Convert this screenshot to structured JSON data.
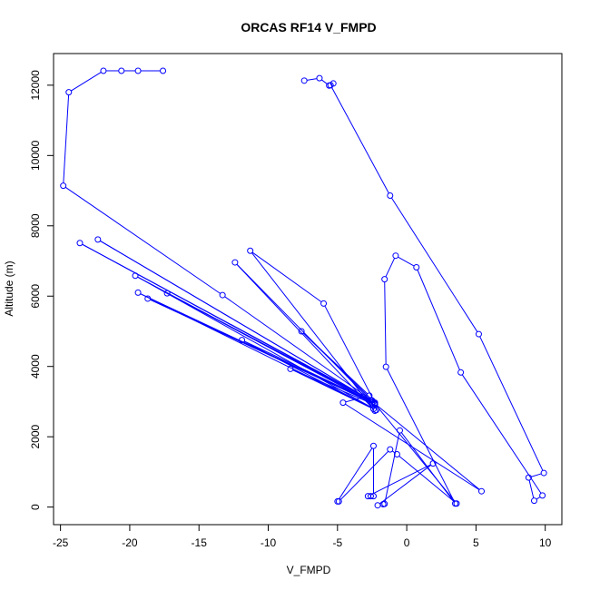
{
  "chart_data": {
    "type": "line",
    "title": "ORCAS RF14 V_FMPD",
    "xlabel": "V_FMPD",
    "ylabel": "Altitude (m)",
    "xlim": [
      -25.5,
      11.2
    ],
    "ylim": [
      -500,
      12900
    ],
    "x_ticks": [
      -25,
      -20,
      -15,
      -10,
      -5,
      0,
      5,
      10
    ],
    "y_ticks": [
      0,
      2000,
      4000,
      6000,
      8000,
      10000,
      12000
    ],
    "grid": false,
    "colors": {
      "series": "#0000ff",
      "axis": "#000000"
    },
    "series": [
      {
        "marker": "open-circle",
        "points": [
          [
            -17.6,
            12410
          ],
          [
            -19.4,
            12410
          ],
          [
            -20.6,
            12410
          ],
          [
            -21.9,
            12410
          ],
          [
            -24.4,
            11800
          ],
          [
            -24.8,
            9140
          ],
          [
            -13.3,
            6030
          ],
          [
            -2.5,
            3030
          ],
          [
            -23.6,
            7510
          ],
          [
            -2.4,
            2990
          ],
          [
            -22.3,
            7610
          ],
          [
            -2.6,
            3040
          ],
          [
            -17.3,
            6080
          ],
          [
            -2.5,
            2980
          ],
          [
            -19.6,
            6580
          ],
          [
            -2.2,
            2760
          ],
          [
            -19.4,
            6100
          ],
          [
            -2.3,
            2930
          ],
          [
            -18.7,
            5930
          ],
          [
            -2.3,
            2960
          ],
          [
            -11.9,
            4750
          ],
          [
            -2.4,
            2790
          ],
          [
            -8.4,
            3930
          ],
          [
            -2.3,
            2910
          ],
          [
            -12.4,
            6960
          ],
          [
            -2.3,
            2740
          ],
          [
            -11.3,
            7290
          ],
          [
            -6.0,
            5790
          ],
          [
            -2.3,
            2970
          ],
          [
            -7.6,
            5000
          ],
          [
            -2.7,
            3170
          ],
          [
            -4.6,
            2970
          ],
          [
            5.4,
            450
          ],
          [
            -2.3,
            2940
          ],
          [
            3.6,
            100
          ],
          [
            -0.7,
            1500
          ],
          [
            -1.2,
            1640
          ],
          [
            -4.9,
            160
          ],
          [
            -5.0,
            160
          ],
          [
            -2.4,
            1740
          ],
          [
            -2.4,
            310
          ],
          [
            -2.6,
            310
          ],
          [
            -2.8,
            310
          ],
          [
            1.9,
            1240
          ],
          [
            -2.1,
            50
          ],
          [
            -1.7,
            80
          ],
          [
            -1.6,
            90
          ],
          [
            -0.5,
            2180
          ],
          [
            3.5,
            100
          ],
          [
            -1.5,
            3990
          ],
          [
            -1.6,
            6480
          ],
          [
            -0.8,
            7150
          ],
          [
            0.7,
            6820
          ],
          [
            3.9,
            3830
          ],
          [
            9.8,
            330
          ],
          [
            9.2,
            180
          ],
          [
            8.8,
            840
          ],
          [
            9.9,
            970
          ],
          [
            5.2,
            4920
          ],
          [
            -1.2,
            8860
          ],
          [
            -5.5,
            12000
          ],
          [
            -5.3,
            12050
          ],
          [
            -5.6,
            11990
          ],
          [
            -6.3,
            12200
          ],
          [
            -7.4,
            12130
          ]
        ]
      }
    ]
  }
}
